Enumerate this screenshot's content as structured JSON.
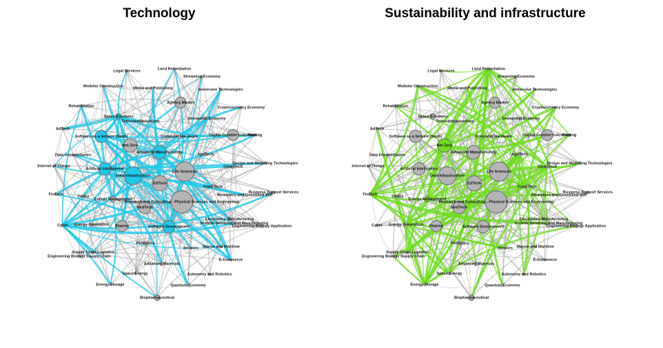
{
  "panels": [
    {
      "title": "Technology",
      "color": "#1fc8e8"
    },
    {
      "title": "Sustainability and infrastructure",
      "color": "#6edc1e"
    }
  ],
  "nodes": [
    "Legal Services",
    "Land Remediation",
    "Streaming Economy",
    "Modular Construction",
    "Media and Publishing",
    "Immersive Technologies",
    "Agency Market",
    "Rehabilitation",
    "Cryptocurrency Economy",
    "Space Economy",
    "Geospatial Economy",
    "Telecommunications",
    "AdTech",
    "Digital Creative Industries",
    "Gaming",
    "Software as a Service (SaaS)",
    "Computer Hardware",
    "Net Zero",
    "Advanced Manufacturing",
    "Data Intermediaries",
    "AgriTech",
    "Design and Modelling Technologies",
    "CleanTech",
    "Internet of Things",
    "Artificial Intelligence",
    "Life Sciences",
    "Data Infrastructure",
    "EdTech",
    "Food Tech",
    "FinTech",
    "Business Support Services",
    "Omics",
    "Wearables and Quantified Self",
    "Energy Management",
    "Research and Consulting - Physical Sciences and Engineering",
    "MedTech",
    "Electronics Manufacturing",
    "In-Orbit Servicing and Manufacturing",
    "Engineering Biology Application",
    "Cyber",
    "Energy Generation",
    "Pharma",
    "Software Development",
    "Photonics",
    "Sensors",
    "Marine and Maritime",
    "Supply Chain Logistics",
    "Engineering Biology Supply Chain",
    "E-Commerce",
    "Advanced Materials",
    "Space Energy",
    "Autonomy and Robotics",
    "Energy Storage",
    "Quantum Economy",
    "Biopharmaceutical"
  ]
}
